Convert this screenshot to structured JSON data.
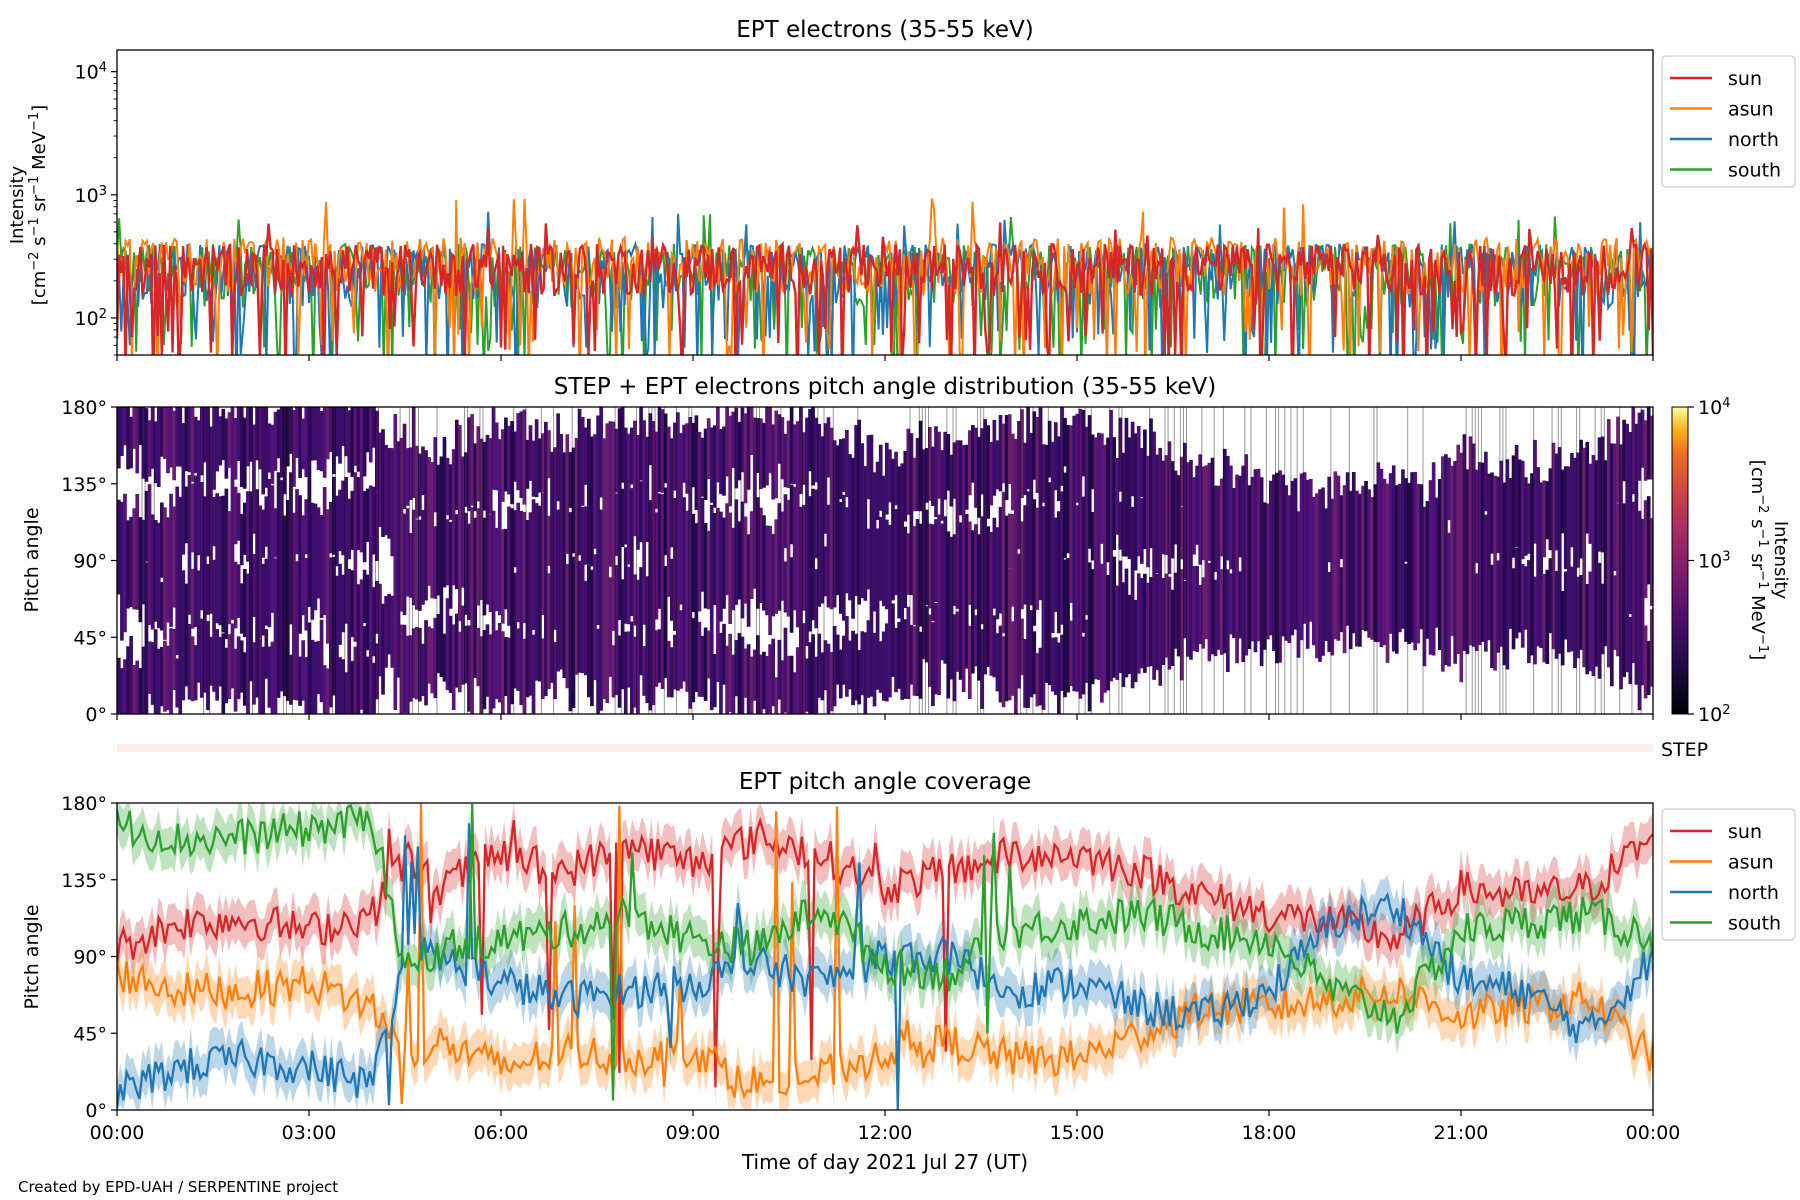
{
  "colors": {
    "sun": "#d62728",
    "asun": "#ff7f0e",
    "north": "#1f77b4",
    "south": "#2ca02c",
    "step_band": "#fdeee8",
    "pad_fill": "#3b0f70"
  },
  "footer": "Created by EPD-UAH / SERPENTINE project",
  "chart_data": [
    {
      "type": "line",
      "title": "EPT electrons (35-55 keV)",
      "ylabel_line1": "Intensity",
      "ylabel_line2_parts": [
        "[cm",
        "−2",
        " s",
        "−1",
        " sr",
        "−1",
        " MeV",
        "−1",
        "]"
      ],
      "yscale": "log",
      "ylim": [
        50,
        15000
      ],
      "yticks": [
        {
          "v": 100,
          "base": "10",
          "exp": "2"
        },
        {
          "v": 1000,
          "base": "10",
          "exp": "3"
        },
        {
          "v": 10000,
          "base": "10",
          "exp": "4"
        }
      ],
      "xlim_hours": [
        0,
        24
      ],
      "legend_placement": "outside-right-top",
      "series": [
        {
          "name": "sun",
          "typical": [
            150,
            400
          ],
          "peak": 600
        },
        {
          "name": "asun",
          "typical": [
            150,
            450
          ],
          "peak": 950
        },
        {
          "name": "north",
          "typical": [
            120,
            400
          ],
          "peak": 750
        },
        {
          "name": "south",
          "typical": [
            120,
            400
          ],
          "peak": 700
        }
      ]
    },
    {
      "type": "heatmap",
      "title": "STEP + EPT electrons pitch angle distribution (35-55 keV)",
      "ylabel": "Pitch angle",
      "ylim": [
        0,
        180
      ],
      "yticks": [
        "0°",
        "45°",
        "90°",
        "135°",
        "180°"
      ],
      "colorbar": {
        "scale": "log",
        "range": [
          100,
          10000
        ],
        "ticks": [
          {
            "base": "10",
            "exp": "2"
          },
          {
            "base": "10",
            "exp": "3"
          },
          {
            "base": "10",
            "exp": "4"
          }
        ],
        "label_line1": "Intensity",
        "label_line2_parts": [
          "[cm",
          "−2",
          " s",
          "−1",
          " sr",
          "−1",
          " MeV",
          "−1",
          "]"
        ],
        "colormap": "inferno"
      },
      "step_label": "STEP"
    },
    {
      "type": "line",
      "title": "EPT pitch angle coverage",
      "ylabel": "Pitch angle",
      "ylim": [
        0,
        180
      ],
      "yticks": [
        "0°",
        "45°",
        "90°",
        "135°",
        "180°"
      ],
      "xlabel": "Time of day 2021 Jul 27 (UT)",
      "xticks": [
        "00:00",
        "03:00",
        "06:00",
        "09:00",
        "12:00",
        "15:00",
        "18:00",
        "21:00",
        "00:00"
      ],
      "xtick_hours": [
        0,
        3,
        6,
        9,
        12,
        15,
        18,
        21,
        24
      ],
      "legend_placement": "outside-right-top",
      "band_halfwidth_deg": 12,
      "series": [
        {
          "name": "sun",
          "x": [
            0,
            1,
            2,
            3,
            4,
            4.5,
            5,
            6,
            7,
            8,
            9,
            10,
            11,
            12,
            13,
            14,
            15,
            16,
            17,
            18,
            19,
            20,
            21,
            22,
            23,
            24
          ],
          "y": [
            95,
            110,
            112,
            105,
            115,
            150,
            130,
            150,
            140,
            155,
            145,
            160,
            150,
            130,
            140,
            150,
            150,
            140,
            125,
            115,
            110,
            100,
            130,
            125,
            130,
            160
          ]
        },
        {
          "name": "asun",
          "x": [
            0,
            1,
            2,
            3,
            4,
            4.5,
            5,
            6,
            7,
            8,
            9,
            10,
            11,
            12,
            13,
            14,
            15,
            16,
            17,
            18,
            19,
            20,
            21,
            22,
            23,
            24
          ],
          "y": [
            80,
            70,
            70,
            75,
            60,
            30,
            40,
            25,
            35,
            30,
            35,
            15,
            20,
            35,
            40,
            30,
            30,
            45,
            60,
            60,
            65,
            70,
            55,
            60,
            65,
            30
          ]
        },
        {
          "name": "north",
          "x": [
            0,
            1,
            2,
            3,
            4,
            4.5,
            5,
            6,
            7,
            8,
            9,
            10,
            11,
            12,
            13,
            14,
            15,
            16,
            17,
            18,
            19,
            20,
            21,
            22,
            23,
            24
          ],
          "y": [
            10,
            25,
            30,
            25,
            15,
            95,
            90,
            75,
            65,
            70,
            75,
            85,
            75,
            90,
            90,
            70,
            75,
            60,
            55,
            70,
            110,
            120,
            75,
            70,
            45,
            90
          ]
        },
        {
          "name": "south",
          "x": [
            0,
            1,
            2,
            3,
            4,
            4.5,
            5,
            6,
            7,
            8,
            9,
            10,
            11,
            12,
            13,
            14,
            15,
            16,
            17,
            18,
            19,
            20,
            21,
            22,
            23,
            24
          ],
          "y": [
            168,
            158,
            160,
            165,
            170,
            80,
            95,
            100,
            105,
            115,
            100,
            95,
            120,
            85,
            80,
            105,
            110,
            115,
            105,
            100,
            70,
            55,
            105,
            110,
            115,
            100
          ]
        }
      ]
    }
  ]
}
